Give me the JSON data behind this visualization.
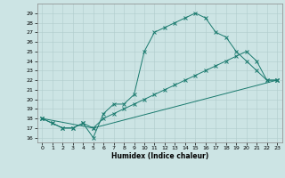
{
  "xlabel": "Humidex (Indice chaleur)",
  "ylabel": "",
  "bg_color": "#cce4e4",
  "line_color": "#1a7a6e",
  "ylim": [
    15.5,
    30.0
  ],
  "xlim": [
    -0.5,
    23.5
  ],
  "yticks": [
    16,
    17,
    18,
    19,
    20,
    21,
    22,
    23,
    24,
    25,
    26,
    27,
    28,
    29
  ],
  "xticks": [
    0,
    1,
    2,
    3,
    4,
    5,
    6,
    7,
    8,
    9,
    10,
    11,
    12,
    13,
    14,
    15,
    16,
    17,
    18,
    19,
    20,
    21,
    22,
    23
  ],
  "line1_x": [
    0,
    1,
    2,
    3,
    4,
    5,
    6,
    7,
    8,
    9,
    10,
    11,
    12,
    13,
    14,
    15,
    16,
    17,
    18,
    19,
    20,
    21,
    22,
    23
  ],
  "line1_y": [
    18,
    17.5,
    17,
    17,
    17.5,
    16,
    18.5,
    19.5,
    19.5,
    20.5,
    25,
    27,
    27.5,
    28,
    28.5,
    29,
    28.5,
    27,
    26.5,
    25,
    24,
    23,
    22,
    22
  ],
  "line2_x": [
    0,
    1,
    2,
    3,
    4,
    5,
    6,
    7,
    8,
    9,
    10,
    11,
    12,
    13,
    14,
    15,
    16,
    17,
    18,
    19,
    20,
    21,
    22,
    23
  ],
  "line2_y": [
    18,
    17.5,
    17,
    17,
    17.5,
    17,
    18,
    18.5,
    19,
    19.5,
    20,
    20.5,
    21,
    21.5,
    22,
    22.5,
    23,
    23.5,
    24,
    24.5,
    25,
    24,
    22,
    22
  ],
  "line3_x": [
    0,
    5,
    23
  ],
  "line3_y": [
    18,
    17,
    22
  ]
}
